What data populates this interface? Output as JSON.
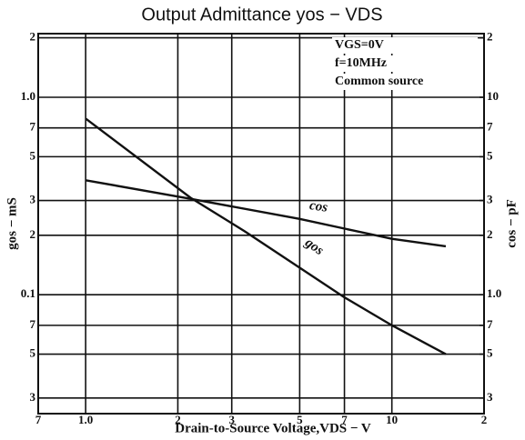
{
  "chart_data": {
    "type": "line",
    "title": "Output Admittance yos − VDS",
    "x_label": "Drain-to-Source Voltage,VDS − V",
    "y_label": "gos − mS",
    "y2_label": "cos − pF",
    "annotations": [
      "VGS=0V",
      "f=10MHz",
      "Common source"
    ],
    "log_x": true,
    "log_y": true,
    "grid": true,
    "xlim": [
      0.7,
      20
    ],
    "xticks": [
      {
        "value": 0.7,
        "label": "7"
      },
      {
        "value": 1,
        "label": "1.0"
      },
      2,
      3,
      5,
      7,
      10,
      {
        "value": 20,
        "label": "2"
      }
    ],
    "ylim": [
      0.025,
      2.1
    ],
    "yticks": [
      {
        "value": 2,
        "label": "2"
      },
      {
        "value": 1,
        "label": "1.0"
      },
      {
        "value": 0.7,
        "label": "7"
      },
      {
        "value": 0.5,
        "label": "5"
      },
      {
        "value": 0.3,
        "label": "3"
      },
      {
        "value": 0.2,
        "label": "2"
      },
      0.1,
      {
        "value": 0.07,
        "label": "7"
      },
      {
        "value": 0.05,
        "label": "5"
      },
      {
        "value": 0.03,
        "label": "3"
      }
    ],
    "y2lim": [
      0.25,
      21
    ],
    "y2ticks": [
      {
        "value": 20,
        "label": "2"
      },
      10,
      7,
      5,
      3,
      2,
      {
        "value": 1,
        "label": "1.0"
      },
      {
        "value": 0.7,
        "label": "7"
      },
      {
        "value": 0.5,
        "label": "5"
      },
      {
        "value": 0.3,
        "label": "3"
      }
    ],
    "series": [
      {
        "name": "cos",
        "color": "#111111",
        "axis": "y2",
        "x": [
          1,
          2.2,
          5,
          10,
          15
        ],
        "values": [
          3.8,
          3.06,
          2.42,
          1.92,
          1.76
        ]
      },
      {
        "name": "gos",
        "color": "#111111",
        "x": [
          1,
          2.2,
          3.3,
          7,
          10,
          15
        ],
        "values": [
          0.78,
          0.31,
          0.21,
          0.097,
          0.07,
          0.05
        ]
      }
    ]
  }
}
